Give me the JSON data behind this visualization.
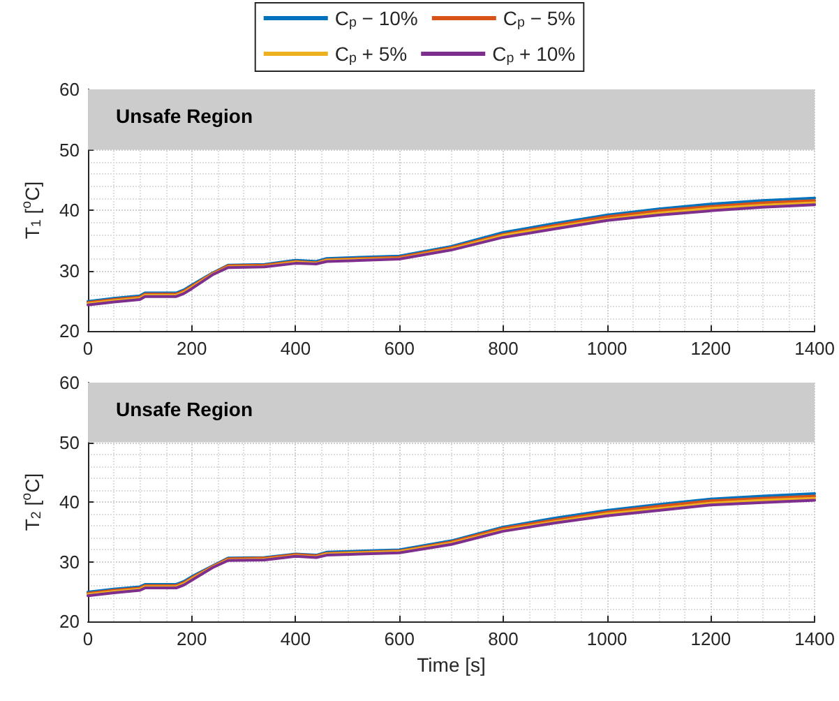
{
  "chart_data": [
    {
      "type": "line",
      "ylabel": "T$_{1}$ [$^{o}$C]",
      "x": [
        0,
        50,
        100,
        110,
        170,
        185,
        200,
        240,
        270,
        340,
        400,
        440,
        460,
        600,
        700,
        800,
        900,
        1000,
        1100,
        1200,
        1300,
        1400
      ],
      "series": [
        {
          "name": "C$_{p}$ − 10%",
          "color": "#0072bd",
          "values": [
            24.9,
            25.4,
            25.8,
            26.3,
            26.3,
            26.8,
            27.6,
            29.6,
            30.9,
            31.0,
            31.7,
            31.5,
            32.0,
            32.4,
            34.0,
            36.3,
            37.8,
            39.2,
            40.2,
            41.0,
            41.6,
            42.0
          ]
        },
        {
          "name": "C$_{p}$ − 5%",
          "color": "#d95319",
          "values": [
            24.7,
            25.2,
            25.6,
            26.1,
            26.1,
            26.6,
            27.4,
            29.5,
            30.8,
            30.9,
            31.5,
            31.3,
            31.8,
            32.2,
            33.8,
            36.0,
            37.5,
            38.9,
            39.9,
            40.6,
            41.2,
            41.6
          ]
        },
        {
          "name": "C$_{p}$ + 5%",
          "color": "#edb120",
          "values": [
            24.5,
            25.0,
            25.4,
            25.9,
            25.9,
            26.4,
            27.2,
            29.4,
            30.6,
            30.7,
            31.4,
            31.2,
            31.7,
            32.0,
            33.6,
            35.8,
            37.2,
            38.5,
            39.5,
            40.3,
            40.8,
            41.2
          ]
        },
        {
          "name": "C$_{p}$ + 10%",
          "color": "#7e2f8e",
          "values": [
            24.3,
            24.8,
            25.2,
            25.7,
            25.7,
            26.2,
            27.0,
            29.3,
            30.5,
            30.6,
            31.2,
            31.1,
            31.5,
            31.9,
            33.4,
            35.5,
            36.9,
            38.3,
            39.2,
            39.9,
            40.5,
            40.9
          ]
        }
      ],
      "xlim": [
        0,
        1400
      ],
      "xticks": [
        0,
        200,
        400,
        600,
        800,
        1000,
        1200,
        1400
      ],
      "ylim": [
        20,
        60
      ],
      "yticks": [
        20,
        30,
        40,
        50,
        60
      ],
      "bands": [
        {
          "axis": "y",
          "from": 50,
          "to": 60,
          "label": "Unsafe Region",
          "color": "#cccccc"
        }
      ],
      "grid": true,
      "legend": "top",
      "marker": "none",
      "line_style": "solid"
    },
    {
      "type": "line",
      "ylabel": "T$_{2}$ [$^{o}$C]",
      "xlabel": "Time [s]",
      "x": [
        0,
        50,
        100,
        110,
        170,
        185,
        200,
        240,
        270,
        340,
        400,
        440,
        460,
        600,
        700,
        800,
        900,
        1000,
        1100,
        1200,
        1300,
        1400
      ],
      "series": [
        {
          "color": "#0072bd",
          "values": [
            24.9,
            25.4,
            25.8,
            26.2,
            26.2,
            26.7,
            27.5,
            29.3,
            30.6,
            30.7,
            31.3,
            31.1,
            31.6,
            32.0,
            33.5,
            35.8,
            37.3,
            38.6,
            39.6,
            40.5,
            41.0,
            41.4
          ]
        },
        {
          "color": "#d95319",
          "values": [
            24.7,
            25.2,
            25.6,
            26.0,
            26.0,
            26.5,
            27.3,
            29.2,
            30.5,
            30.6,
            31.2,
            31.0,
            31.4,
            31.8,
            33.3,
            35.6,
            37.0,
            38.3,
            39.3,
            40.2,
            40.6,
            41.0
          ]
        },
        {
          "color": "#edb120",
          "values": [
            24.5,
            25.0,
            25.4,
            25.8,
            25.8,
            26.3,
            27.1,
            29.1,
            30.3,
            30.4,
            31.0,
            30.8,
            31.3,
            31.7,
            33.1,
            35.3,
            36.7,
            38.0,
            38.9,
            39.8,
            40.3,
            40.6
          ]
        },
        {
          "color": "#7e2f8e",
          "values": [
            24.3,
            24.8,
            25.2,
            25.6,
            25.6,
            26.1,
            26.9,
            29.0,
            30.2,
            30.3,
            30.9,
            30.7,
            31.1,
            31.5,
            32.9,
            35.1,
            36.5,
            37.7,
            38.6,
            39.5,
            39.9,
            40.3
          ]
        }
      ],
      "xlim": [
        0,
        1400
      ],
      "xticks": [
        0,
        200,
        400,
        600,
        800,
        1000,
        1200,
        1400
      ],
      "ylim": [
        20,
        60
      ],
      "yticks": [
        20,
        30,
        40,
        50,
        60
      ],
      "bands": [
        {
          "axis": "y",
          "from": 50,
          "to": 60,
          "label": "Unsafe Region",
          "color": "#cccccc"
        }
      ],
      "grid": true,
      "marker": "none",
      "line_style": "solid"
    }
  ]
}
